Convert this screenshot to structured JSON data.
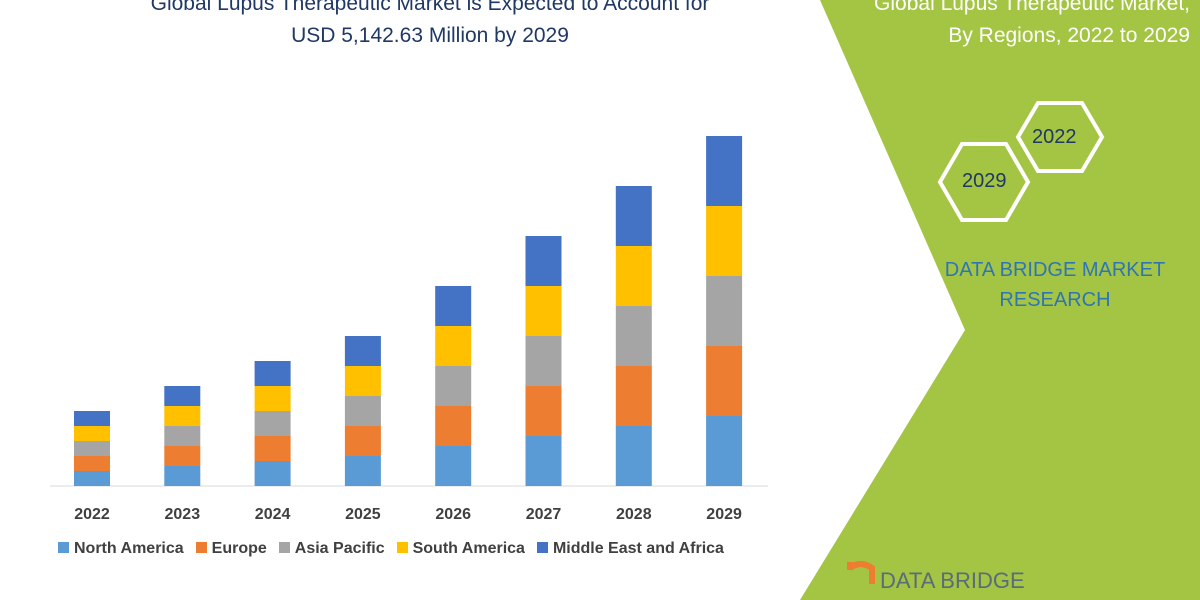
{
  "title_line1": "Global Lupus Therapeutic Market is Expected to Account for",
  "title_line2": "USD 5,142.63 Million by 2029",
  "right_title_line1": "Global Lupus Therapeutic Market,",
  "right_title_line2": "By Regions, 2022 to 2029",
  "hex_labels": [
    "2022",
    "2029"
  ],
  "brand_line1": "DATA BRIDGE MARKET",
  "brand_line2": "RESEARCH",
  "logo_text": "DATA BRIDGE",
  "colors": {
    "panel": "#a4c443",
    "title": "#1f3864"
  },
  "chart_data": {
    "type": "bar",
    "stacked": true,
    "categories": [
      "2022",
      "2023",
      "2024",
      "2025",
      "2026",
      "2027",
      "2028",
      "2029"
    ],
    "series": [
      {
        "name": "North America",
        "color": "#5b9bd5",
        "values": [
          15,
          20,
          25,
          30,
          40,
          50,
          60,
          70
        ]
      },
      {
        "name": "Europe",
        "color": "#ed7d31",
        "values": [
          15,
          20,
          25,
          30,
          40,
          50,
          60,
          70
        ]
      },
      {
        "name": "Asia Pacific",
        "color": "#a5a5a5",
        "values": [
          15,
          20,
          25,
          30,
          40,
          50,
          60,
          70
        ]
      },
      {
        "name": "South America",
        "color": "#ffc000",
        "values": [
          15,
          20,
          25,
          30,
          40,
          50,
          60,
          70
        ]
      },
      {
        "name": "Middle East and Africa",
        "color": "#4472c4",
        "values": [
          15,
          20,
          25,
          30,
          40,
          50,
          60,
          70
        ]
      }
    ],
    "grid": false,
    "legend": "bottom"
  }
}
